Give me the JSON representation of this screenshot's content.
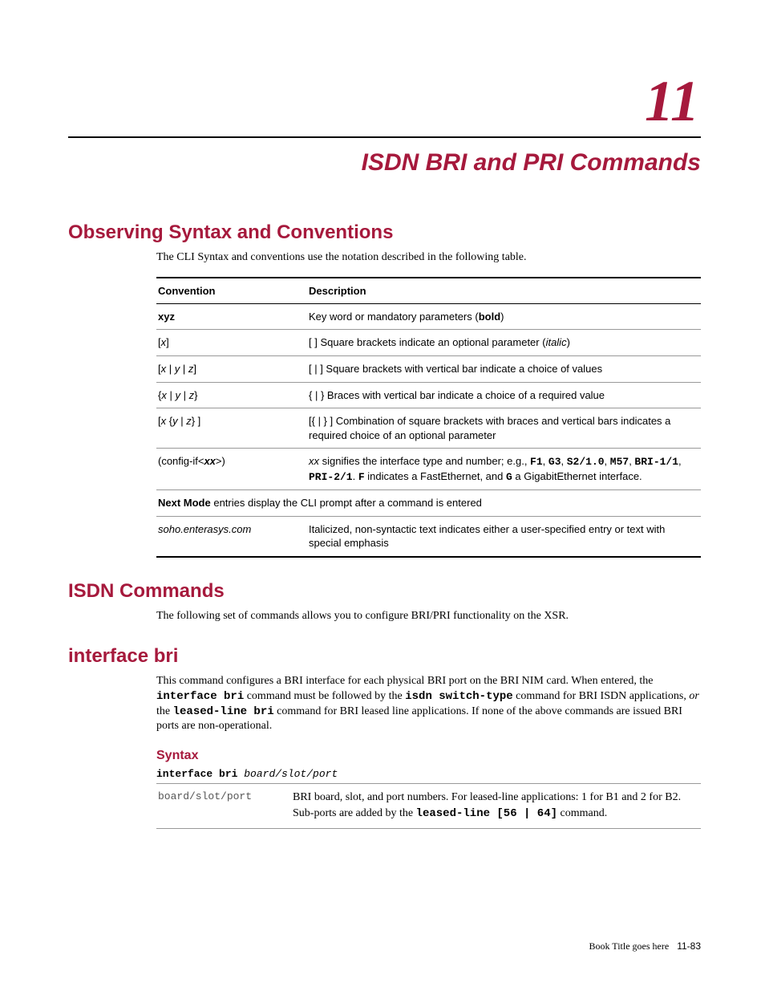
{
  "colors": {
    "accent": "#a6193c",
    "text": "#000000",
    "rule_light": "#999999",
    "background": "#ffffff"
  },
  "chapter": {
    "number": "11",
    "title": "ISDN BRI and PRI Commands"
  },
  "sections": {
    "syntax_conventions": {
      "heading": "Observing Syntax and Conventions",
      "intro": "The CLI Syntax and conventions use the notation described in the following table.",
      "table": {
        "headers": [
          "Convention",
          "Description"
        ],
        "rows": [
          {
            "conv_html": "<b>xyz</b>",
            "desc_html": "Key word or mandatory parameters (<b>bold</b>)"
          },
          {
            "conv_html": "[<i>x</i>]",
            "desc_html": "[ ] Square brackets indicate an optional parameter (<i>italic</i>)"
          },
          {
            "conv_html": "[<i>x</i> | <i>y</i> | <i>z</i>]",
            "desc_html": "[ | ] Square brackets with vertical bar indicate a choice of values"
          },
          {
            "conv_html": "{<i>x</i> | <i>y</i> | <i>z</i>}",
            "desc_html": "{ | } Braces with vertical bar indicate a choice of a required value"
          },
          {
            "conv_html": "[<i>x</i> {<i>y</i> | <i>z</i>} ]",
            "desc_html": "[{ | } ] Combination of square brackets with braces and vertical bars indicates a required choice of an optional parameter"
          },
          {
            "conv_html": "(config-if&lt;<b><i>xx</i></b>&gt;)",
            "desc_html": "<i>xx</i> signifies the interface type and number; e.g., <span class=\"mono\"><b>F1</b></span>, <span class=\"mono\"><b>G3</b></span>, <span class=\"mono\"><b>S2/1.0</b></span>, <span class=\"mono\"><b>M57</b></span>, <span class=\"mono\"><b>BRI-1/1</b></span>, <span class=\"mono\"><b>PRI-2/1</b></span>. <span class=\"mono\"><b>F</b></span> indicates a FastEthernet, and <span class=\"mono\"><b>G</b></span> a GigabitEthernet interface."
          },
          {
            "conv_html": "",
            "desc_html": "",
            "full_row_html": "<b>Next Mode</b> entries display the CLI prompt after a command is entered"
          },
          {
            "conv_html": "<i>soho.enterasys.com</i>",
            "desc_html": "Italicized, non-syntactic text indicates either a user-specified entry or text with special emphasis"
          }
        ]
      }
    },
    "isdn_commands": {
      "heading": "ISDN Commands",
      "intro": "The following set of commands allows you to configure BRI/PRI functionality on the XSR."
    },
    "interface_bri": {
      "heading": "interface bri",
      "intro_html": "This command configures a BRI interface for each physical BRI port on the BRI NIM card. When entered, the <span class=\"mono\"><b>interface bri</b></span> command must be followed by the <span class=\"mono\"><b>isdn switch-type</b></span> command for BRI ISDN applications, <i>or</i> the <span class=\"mono\"><b>leased-line bri</b></span> command for BRI leased line applications. If none of the above commands are issued BRI ports are non-operational.",
      "syntax": {
        "heading": "Syntax",
        "line_html": "<b>interface bri</b> <i>board/slot/port</i>",
        "params": [
          {
            "name": "board/slot/port",
            "desc_html": "BRI board, slot, and port numbers. For leased-line applications: 1 for B1 and 2 for B2. Sub-ports are added by the <span class=\"mono\"><b>leased-line [56 | 64]</b></span> command."
          }
        ]
      }
    }
  },
  "footer": {
    "book_title": "Book Title goes here",
    "page_ref": "11-83"
  }
}
